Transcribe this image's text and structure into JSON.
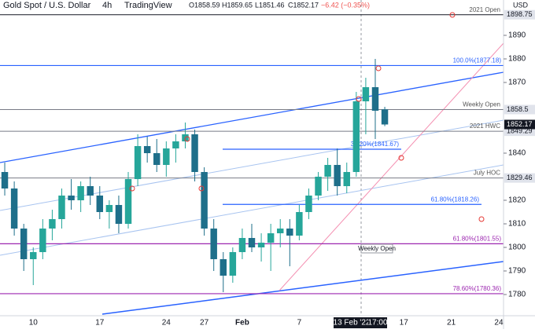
{
  "header": {
    "symbol": "Gold Spot / U.S. Dollar",
    "interval": "4h",
    "source": "TradingView",
    "open": "O1858.59",
    "high": "H1859.65",
    "low": "L1851.46",
    "close": "C1852.17",
    "change": "−6.42 (−0.35%)",
    "currency": "USD"
  },
  "chart_data": {
    "type": "candlestick",
    "categories": [
      null,
      null,
      null,
      "10",
      null,
      null,
      null,
      null,
      null,
      null,
      "17",
      null,
      null,
      null,
      null,
      null,
      null,
      "24",
      null,
      null,
      null,
      "27",
      null,
      null,
      null,
      "Feb",
      null,
      null,
      null,
      null,
      null,
      "7",
      null,
      null,
      null,
      null,
      null,
      null,
      null,
      null,
      null,
      null,
      "17",
      null,
      null,
      null,
      null,
      "21",
      null,
      null,
      null,
      null,
      "24"
    ],
    "open": [
      1832,
      1825,
      1808,
      1795,
      1798,
      1808,
      1812,
      1822,
      1820,
      1826,
      1822,
      1815,
      1818,
      1810,
      1829,
      1843,
      1840,
      1835,
      1842,
      1845,
      1848,
      1832,
      1808,
      1795,
      1788,
      1798,
      1804,
      1800,
      1802,
      1806,
      1808,
      1805,
      1815,
      1822,
      1830,
      1835,
      1826,
      1832,
      1862,
      1868,
      1858.59,
      null,
      null,
      null,
      null,
      null,
      null,
      null,
      null,
      null,
      null,
      null,
      null
    ],
    "high": [
      1836,
      1828,
      1810,
      1800,
      1812,
      1816,
      1825,
      1829,
      1828,
      1830,
      1826,
      1820,
      1822,
      1832,
      1848,
      1847,
      1846,
      1845,
      1848,
      1853,
      1850,
      1834,
      1812,
      1798,
      1800,
      1808,
      1810,
      1806,
      1810,
      1812,
      1812,
      1818,
      1825,
      1832,
      1838,
      1842,
      1836,
      1866,
      1872,
      1880,
      1859.65,
      null,
      null,
      null,
      null,
      null,
      null,
      null,
      null,
      null,
      null,
      null,
      null
    ],
    "low": [
      1822,
      1805,
      1790,
      1784,
      1795,
      1803,
      1808,
      1816,
      1815,
      1818,
      1812,
      1808,
      1806,
      1808,
      1826,
      1836,
      1832,
      1830,
      1836,
      1842,
      1828,
      1805,
      1790,
      1781,
      1785,
      1795,
      1798,
      1794,
      1790,
      1800,
      1792,
      1803,
      1812,
      1820,
      1824,
      1822,
      1823,
      1830,
      1848,
      1846,
      1851.46,
      null,
      null,
      null,
      null,
      null,
      null,
      null,
      null,
      null,
      null,
      null,
      null
    ],
    "close": [
      1825,
      1808,
      1795,
      1798,
      1808,
      1812,
      1822,
      1820,
      1826,
      1822,
      1815,
      1818,
      1810,
      1829,
      1843,
      1840,
      1835,
      1842,
      1845,
      1848,
      1832,
      1808,
      1795,
      1788,
      1798,
      1804,
      1800,
      1802,
      1806,
      1808,
      1805,
      1815,
      1822,
      1830,
      1835,
      1826,
      1832,
      1862,
      1868,
      1858,
      1852.17,
      null,
      null,
      null,
      null,
      null,
      null,
      null,
      null,
      null,
      null,
      null,
      null
    ],
    "up_color": "#26a69a",
    "down_color": "#1e6f8a",
    "ylim": [
      1771.67,
      1905
    ],
    "yticks": [
      1780,
      1790,
      1800,
      1810,
      1820,
      1840,
      1870,
      1880,
      1890
    ],
    "levels": [
      {
        "name": "2021 Open",
        "value": 1898.75,
        "color": "#131722"
      },
      {
        "name": "Weekly Open",
        "value": 1858.5,
        "color": "#787b86"
      },
      {
        "name": "2021 HWC",
        "value": 1849.29,
        "color": "#787b86"
      },
      {
        "name": "July HOC",
        "value": 1829.46,
        "color": "#787b86"
      }
    ],
    "last_price": 1852.17,
    "fibs": [
      {
        "label": "100.0%(1877.18)",
        "value": 1877.18,
        "color": "#2962ff"
      },
      {
        "label": "38.20%(1841.67)",
        "value": 1841.67,
        "color": "#2962ff"
      },
      {
        "label": "61.80%(1818.26)",
        "value": 1818.26,
        "color": "#2962ff"
      },
      {
        "label": "61.80%(1801.55)",
        "value": 1801.55,
        "color": "#9c27b0"
      },
      {
        "label": "78.60%(1780.36)",
        "value": 1780.36,
        "color": "#9c27b0"
      }
    ],
    "annotation": "Weekly Open",
    "crosshair": {
      "date": "13 Feb '22",
      "time": "17:00"
    }
  }
}
